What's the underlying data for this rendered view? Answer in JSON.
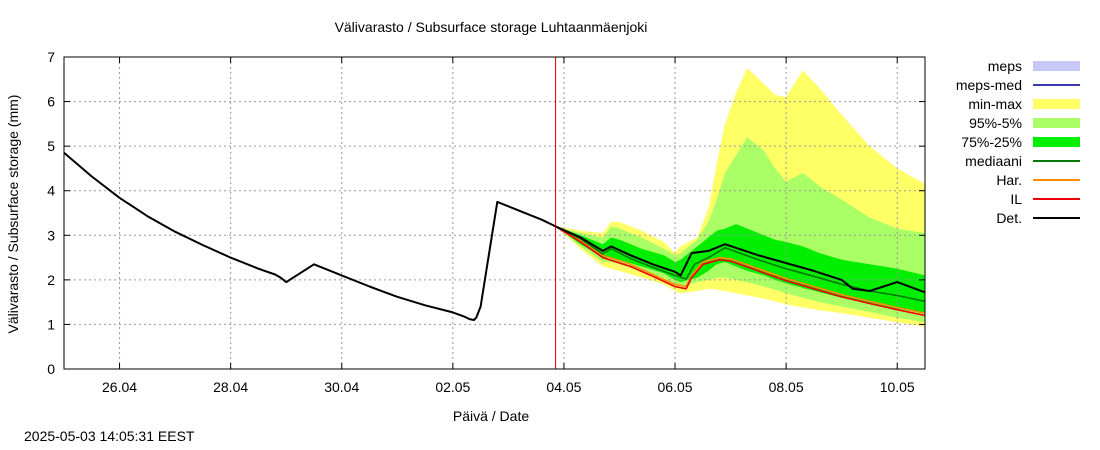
{
  "chart_data": {
    "type": "line",
    "title": "Välivarasto / Subsurface storage  Luhtaanmäenjoki",
    "xlabel": "Päivä / Date",
    "ylabel": "Välivarasto / Subsurface storage (mm)",
    "ylim": [
      0,
      7
    ],
    "xlim": [
      0,
      15.5
    ],
    "yticks": [
      0,
      1,
      2,
      3,
      4,
      5,
      6,
      7
    ],
    "xticks": [
      {
        "x": 1,
        "label": "26.04"
      },
      {
        "x": 3,
        "label": "28.04"
      },
      {
        "x": 5,
        "label": "30.04"
      },
      {
        "x": 7,
        "label": "02.05"
      },
      {
        "x": 9,
        "label": "04.05"
      },
      {
        "x": 11,
        "label": "06.05"
      },
      {
        "x": 13,
        "label": "08.05"
      },
      {
        "x": 15,
        "label": "10.05"
      }
    ],
    "grid": true,
    "now_marker_x": 8.85,
    "legend": {
      "placement": "right",
      "entries": [
        {
          "label": "meps",
          "kind": "box",
          "color": "#c8c8f8"
        },
        {
          "label": "meps-med",
          "kind": "line",
          "color": "#3a3ab8"
        },
        {
          "label": "min-max",
          "kind": "box",
          "color": "#ffff66"
        },
        {
          "label": "95%-5%",
          "kind": "box",
          "color": "#aaff66"
        },
        {
          "label": "75%-25%",
          "kind": "box",
          "color": "#00ee00"
        },
        {
          "label": "mediaani",
          "kind": "line",
          "color": "#007a00"
        },
        {
          "label": "Har.",
          "kind": "line",
          "color": "#ff8c00"
        },
        {
          "label": "IL",
          "kind": "line",
          "color": "#ee0000"
        },
        {
          "label": "Det.",
          "kind": "line",
          "color": "#000000"
        }
      ]
    },
    "series": [
      {
        "name": "Det.",
        "color": "#000000",
        "x": [
          0,
          0.5,
          1,
          1.5,
          2,
          2.5,
          3,
          3.5,
          3.8,
          3.9,
          4.0,
          4.5,
          5,
          5.5,
          6,
          6.5,
          7,
          7.2,
          7.3,
          7.38,
          7.42,
          7.5,
          7.8,
          8.2,
          8.6,
          8.85,
          9.3,
          9.7,
          9.85,
          10.2,
          10.6,
          11.0,
          11.1,
          11.3,
          11.6,
          11.9,
          12.5,
          13.5,
          14.0,
          14.2,
          14.5,
          15.0,
          15.5
        ],
        "y": [
          4.85,
          4.32,
          3.84,
          3.43,
          3.08,
          2.78,
          2.5,
          2.25,
          2.12,
          2.05,
          1.95,
          2.35,
          2.1,
          1.85,
          1.62,
          1.43,
          1.27,
          1.18,
          1.12,
          1.1,
          1.15,
          1.4,
          3.75,
          3.55,
          3.35,
          3.2,
          2.95,
          2.65,
          2.75,
          2.55,
          2.35,
          2.18,
          2.1,
          2.6,
          2.65,
          2.8,
          2.55,
          2.2,
          2.0,
          1.8,
          1.75,
          1.95,
          1.72
        ]
      },
      {
        "name": "IL",
        "color": "#ee0000",
        "x": [
          8.85,
          9.3,
          9.7,
          10.2,
          10.6,
          11.0,
          11.2,
          11.3,
          11.5,
          11.8,
          12.0,
          12.5,
          13.0,
          13.5,
          14.0,
          14.5,
          15.0,
          15.5
        ],
        "y": [
          3.2,
          2.85,
          2.5,
          2.3,
          2.08,
          1.85,
          1.8,
          2.05,
          2.35,
          2.45,
          2.42,
          2.2,
          1.98,
          1.8,
          1.62,
          1.47,
          1.33,
          1.2
        ]
      },
      {
        "name": "mediaani",
        "color": "#007a00",
        "x": [
          8.85,
          9.3,
          9.7,
          9.85,
          10.2,
          10.6,
          11.0,
          11.2,
          11.35,
          11.6,
          11.9,
          12.5,
          13.0,
          13.5,
          14.0,
          14.5,
          15.0,
          15.5
        ],
        "y": [
          3.2,
          2.92,
          2.58,
          2.7,
          2.48,
          2.28,
          2.1,
          2.02,
          2.35,
          2.5,
          2.72,
          2.45,
          2.25,
          2.08,
          1.9,
          1.75,
          1.65,
          1.52
        ]
      },
      {
        "name": "Har.",
        "color": "#ff8c00",
        "x": [
          8.85,
          9.3,
          9.7,
          10.2,
          10.6,
          11.0,
          11.2,
          11.3,
          11.5,
          11.8,
          12.0,
          12.5,
          13.0,
          13.5,
          14.0,
          14.5,
          15.0,
          15.5
        ],
        "y": [
          3.2,
          2.88,
          2.55,
          2.35,
          2.12,
          1.9,
          1.85,
          2.1,
          2.4,
          2.5,
          2.47,
          2.25,
          2.03,
          1.85,
          1.67,
          1.52,
          1.38,
          1.25
        ]
      }
    ],
    "bands": [
      {
        "name": "min-max",
        "color": "#ffff66",
        "x": [
          8.85,
          9.3,
          9.7,
          9.85,
          10.0,
          10.4,
          10.8,
          11.0,
          11.1,
          11.4,
          11.6,
          11.75,
          11.9,
          12.1,
          12.3,
          12.6,
          12.8,
          13.0,
          13.3,
          13.6,
          14.0,
          14.5,
          15.0,
          15.5
        ],
        "low": [
          3.2,
          2.7,
          2.3,
          2.25,
          2.2,
          2.05,
          1.9,
          1.75,
          1.7,
          1.75,
          1.8,
          1.78,
          1.75,
          1.7,
          1.65,
          1.58,
          1.52,
          1.45,
          1.38,
          1.32,
          1.25,
          1.15,
          1.05,
          0.95
        ],
        "high": [
          3.2,
          3.1,
          3.05,
          3.3,
          3.3,
          3.1,
          2.85,
          2.6,
          2.75,
          2.95,
          3.6,
          4.6,
          5.5,
          6.2,
          6.75,
          6.4,
          6.15,
          6.1,
          6.7,
          6.3,
          5.7,
          5.0,
          4.5,
          4.15
        ]
      },
      {
        "name": "95%-5%",
        "color": "#aaff66",
        "x": [
          8.85,
          9.3,
          9.7,
          9.85,
          10.0,
          10.4,
          10.8,
          11.0,
          11.1,
          11.4,
          11.6,
          11.75,
          11.9,
          12.1,
          12.3,
          12.6,
          12.8,
          13.0,
          13.3,
          13.6,
          14.0,
          14.5,
          15.0,
          15.5
        ],
        "low": [
          3.2,
          2.75,
          2.4,
          2.4,
          2.35,
          2.2,
          2.05,
          1.9,
          1.85,
          1.95,
          2.0,
          2.05,
          2.05,
          2.0,
          1.95,
          1.85,
          1.78,
          1.7,
          1.6,
          1.5,
          1.4,
          1.28,
          1.15,
          1.05
        ],
        "high": [
          3.2,
          3.05,
          2.95,
          3.2,
          3.15,
          2.95,
          2.7,
          2.55,
          2.6,
          2.9,
          3.3,
          3.8,
          4.4,
          4.8,
          5.2,
          4.9,
          4.5,
          4.2,
          4.4,
          4.1,
          3.8,
          3.4,
          3.15,
          3.05
        ]
      },
      {
        "name": "75%-25%",
        "color": "#00ee00",
        "x": [
          8.85,
          9.3,
          9.7,
          9.85,
          10.0,
          10.4,
          10.8,
          11.0,
          11.1,
          11.4,
          11.6,
          11.75,
          11.9,
          12.1,
          12.3,
          12.6,
          12.8,
          13.0,
          13.3,
          13.6,
          14.0,
          14.5,
          15.0,
          15.5
        ],
        "low": [
          3.2,
          2.8,
          2.5,
          2.5,
          2.45,
          2.3,
          2.15,
          2.0,
          1.95,
          2.05,
          2.2,
          2.35,
          2.4,
          2.3,
          2.2,
          2.1,
          2.0,
          1.92,
          1.82,
          1.72,
          1.6,
          1.48,
          1.35,
          1.25
        ],
        "high": [
          3.2,
          3.0,
          2.8,
          2.95,
          2.9,
          2.7,
          2.55,
          2.4,
          2.45,
          2.75,
          2.95,
          3.1,
          3.15,
          3.25,
          3.15,
          3.0,
          2.9,
          2.85,
          2.75,
          2.6,
          2.45,
          2.35,
          2.25,
          2.1
        ]
      }
    ]
  },
  "footer": {
    "timestamp": "2025-05-03 14:05:31 EEST"
  }
}
